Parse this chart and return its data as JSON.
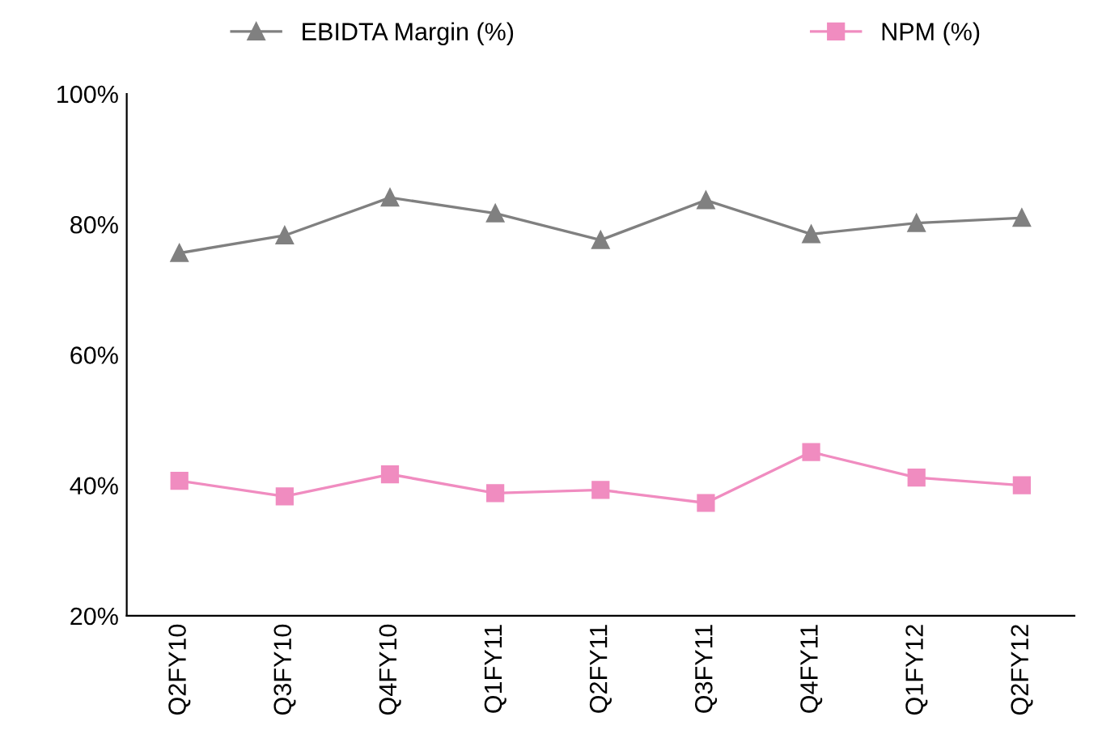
{
  "chart_data": {
    "type": "line",
    "categories": [
      "Q2FY10",
      "Q3FY10",
      "Q4FY10",
      "Q1FY11",
      "Q2FY11",
      "Q3FY11",
      "Q4FY11",
      "Q1FY12",
      "Q2FY12"
    ],
    "series": [
      {
        "name": "EBIDTA Margin (%)",
        "color": "#808080",
        "marker": "triangle",
        "values": [
          75.6,
          78.3,
          84.1,
          81.7,
          77.6,
          83.7,
          78.5,
          80.2,
          81
        ]
      },
      {
        "name": "NPM (%)",
        "color": "#f08cc0",
        "marker": "square",
        "values": [
          40.7,
          38.3,
          41.7,
          38.8,
          39.3,
          37.3,
          45.1,
          41.2,
          40
        ]
      }
    ],
    "ylim": [
      20,
      100
    ],
    "yticks": [
      {
        "value": 20,
        "label": "20%"
      },
      {
        "value": 40,
        "label": "40%"
      },
      {
        "value": 60,
        "label": "60%"
      },
      {
        "value": 80,
        "label": "80%"
      },
      {
        "value": 100,
        "label": "100%"
      }
    ],
    "grid": false,
    "legend": "top",
    "line_style": "solid"
  }
}
